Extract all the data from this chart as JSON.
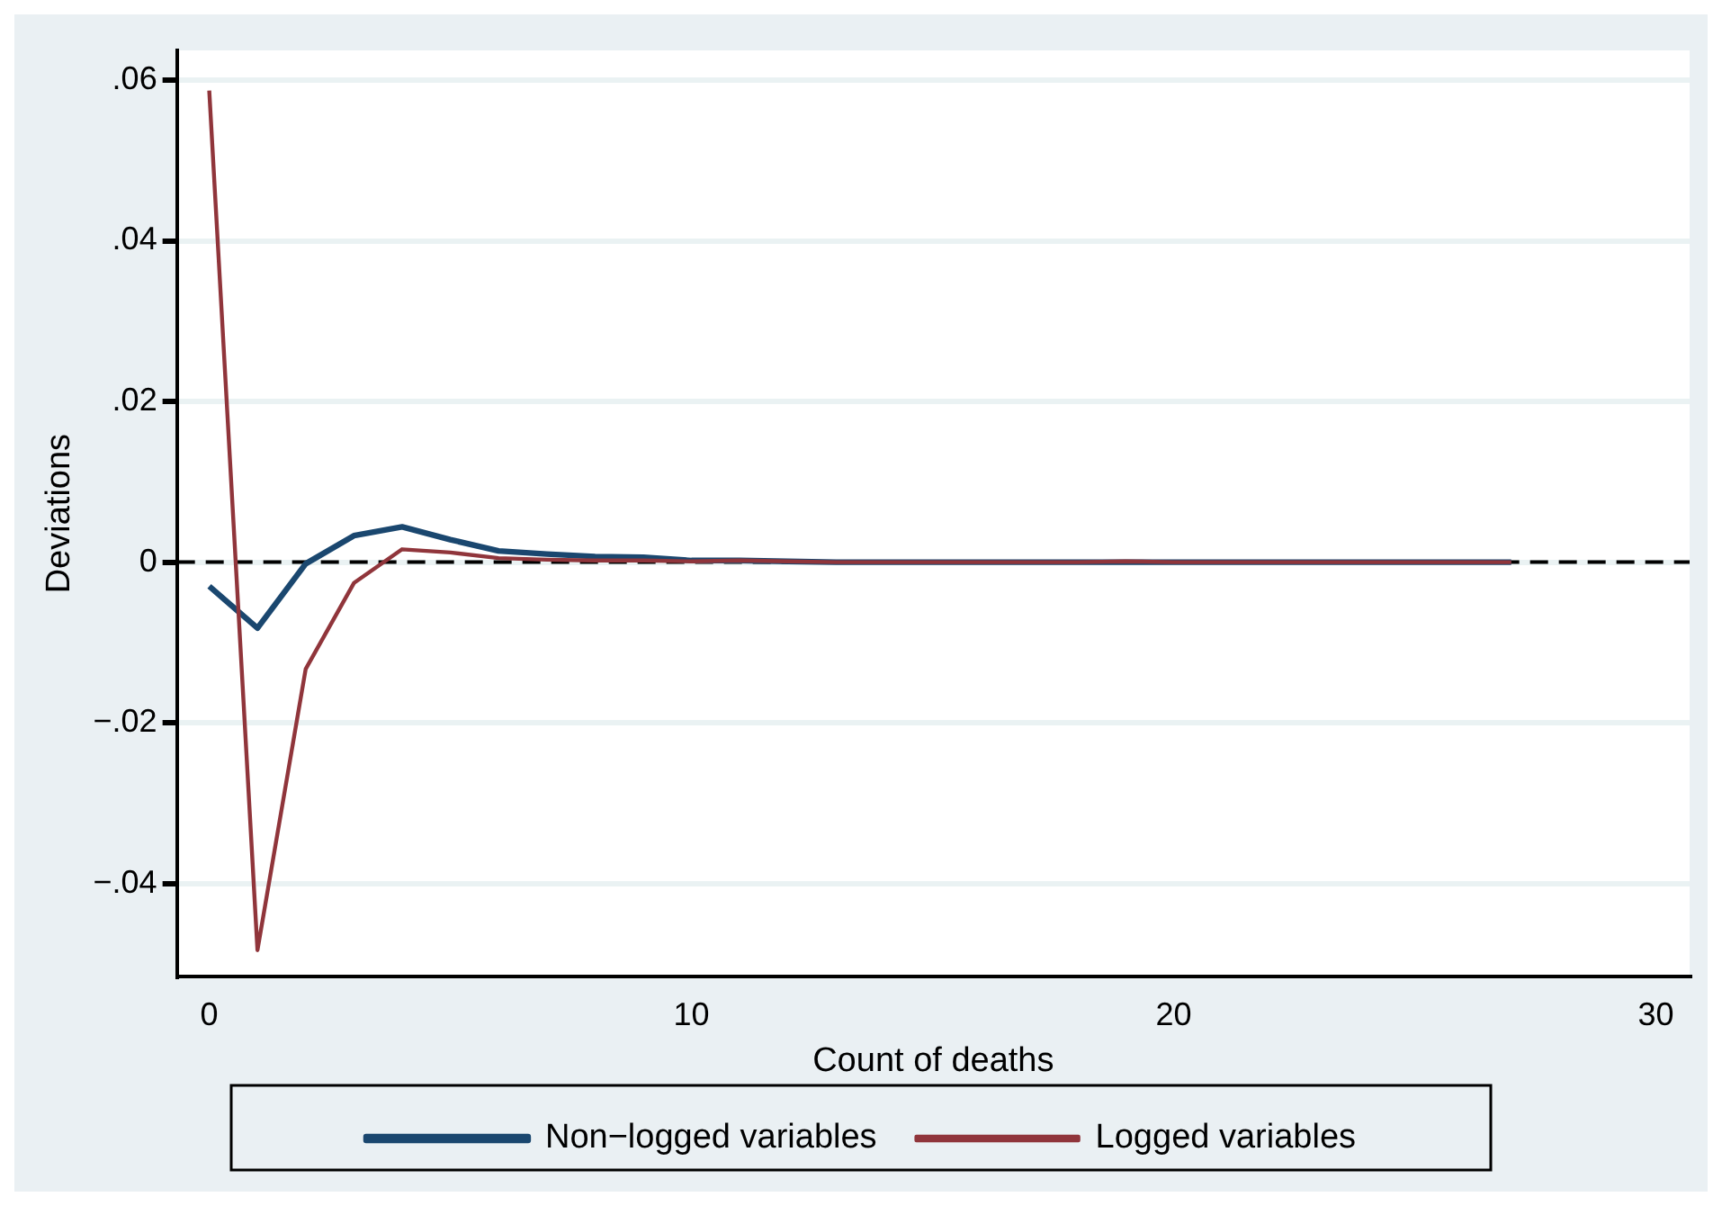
{
  "chart_data": {
    "type": "line",
    "xlabel": "Count of deaths",
    "ylabel": "Deviations",
    "xlim": [
      -0.67,
      30.7
    ],
    "xticks": [
      0,
      10,
      20,
      30
    ],
    "ylim": [
      -0.0516,
      0.0637
    ],
    "yticks": [
      {
        "value": 0.06,
        "label": ".06"
      },
      {
        "value": 0.04,
        "label": ".04"
      },
      {
        "value": 0.02,
        "label": ".02"
      },
      0,
      {
        "value": -0.02,
        "label": "−.02"
      },
      {
        "value": -0.04,
        "label": "−.04"
      }
    ],
    "grid": "y",
    "legend": "bottom",
    "line_style": "solid",
    "marker": "none",
    "ref_lines": [
      {
        "axis": "y",
        "value": 0,
        "color": "#000000",
        "line_style": "dashed"
      }
    ],
    "x": [
      0,
      1,
      2,
      3,
      4,
      5,
      6,
      7,
      8,
      9,
      10,
      11,
      12,
      13,
      14,
      15,
      16,
      17,
      18,
      19,
      20,
      21,
      22,
      23,
      24,
      25,
      26,
      27
    ],
    "series": [
      {
        "name": "Non−logged variables",
        "color": "#1a476f",
        "values": [
          -0.003,
          -0.0082,
          -0.0002,
          0.0033,
          0.0044,
          0.0028,
          0.0014,
          0.001,
          0.0007,
          0.0006,
          0.0002,
          0.0002,
          0.0001,
          0,
          0,
          0,
          0,
          0,
          0,
          0,
          0,
          0,
          0,
          0,
          0,
          0,
          0,
          0
        ]
      },
      {
        "name": "Logged variables",
        "color": "#90353b",
        "values": [
          0.0587,
          -0.0483,
          -0.0133,
          -0.0026,
          0.0016,
          0.0012,
          0.0005,
          0.0003,
          0.0002,
          0.0002,
          0.0001,
          0.0002,
          0.0001,
          0,
          0,
          0,
          0,
          0,
          0,
          0.0001,
          0,
          0,
          0,
          0,
          0,
          0,
          0,
          0
        ]
      }
    ]
  }
}
